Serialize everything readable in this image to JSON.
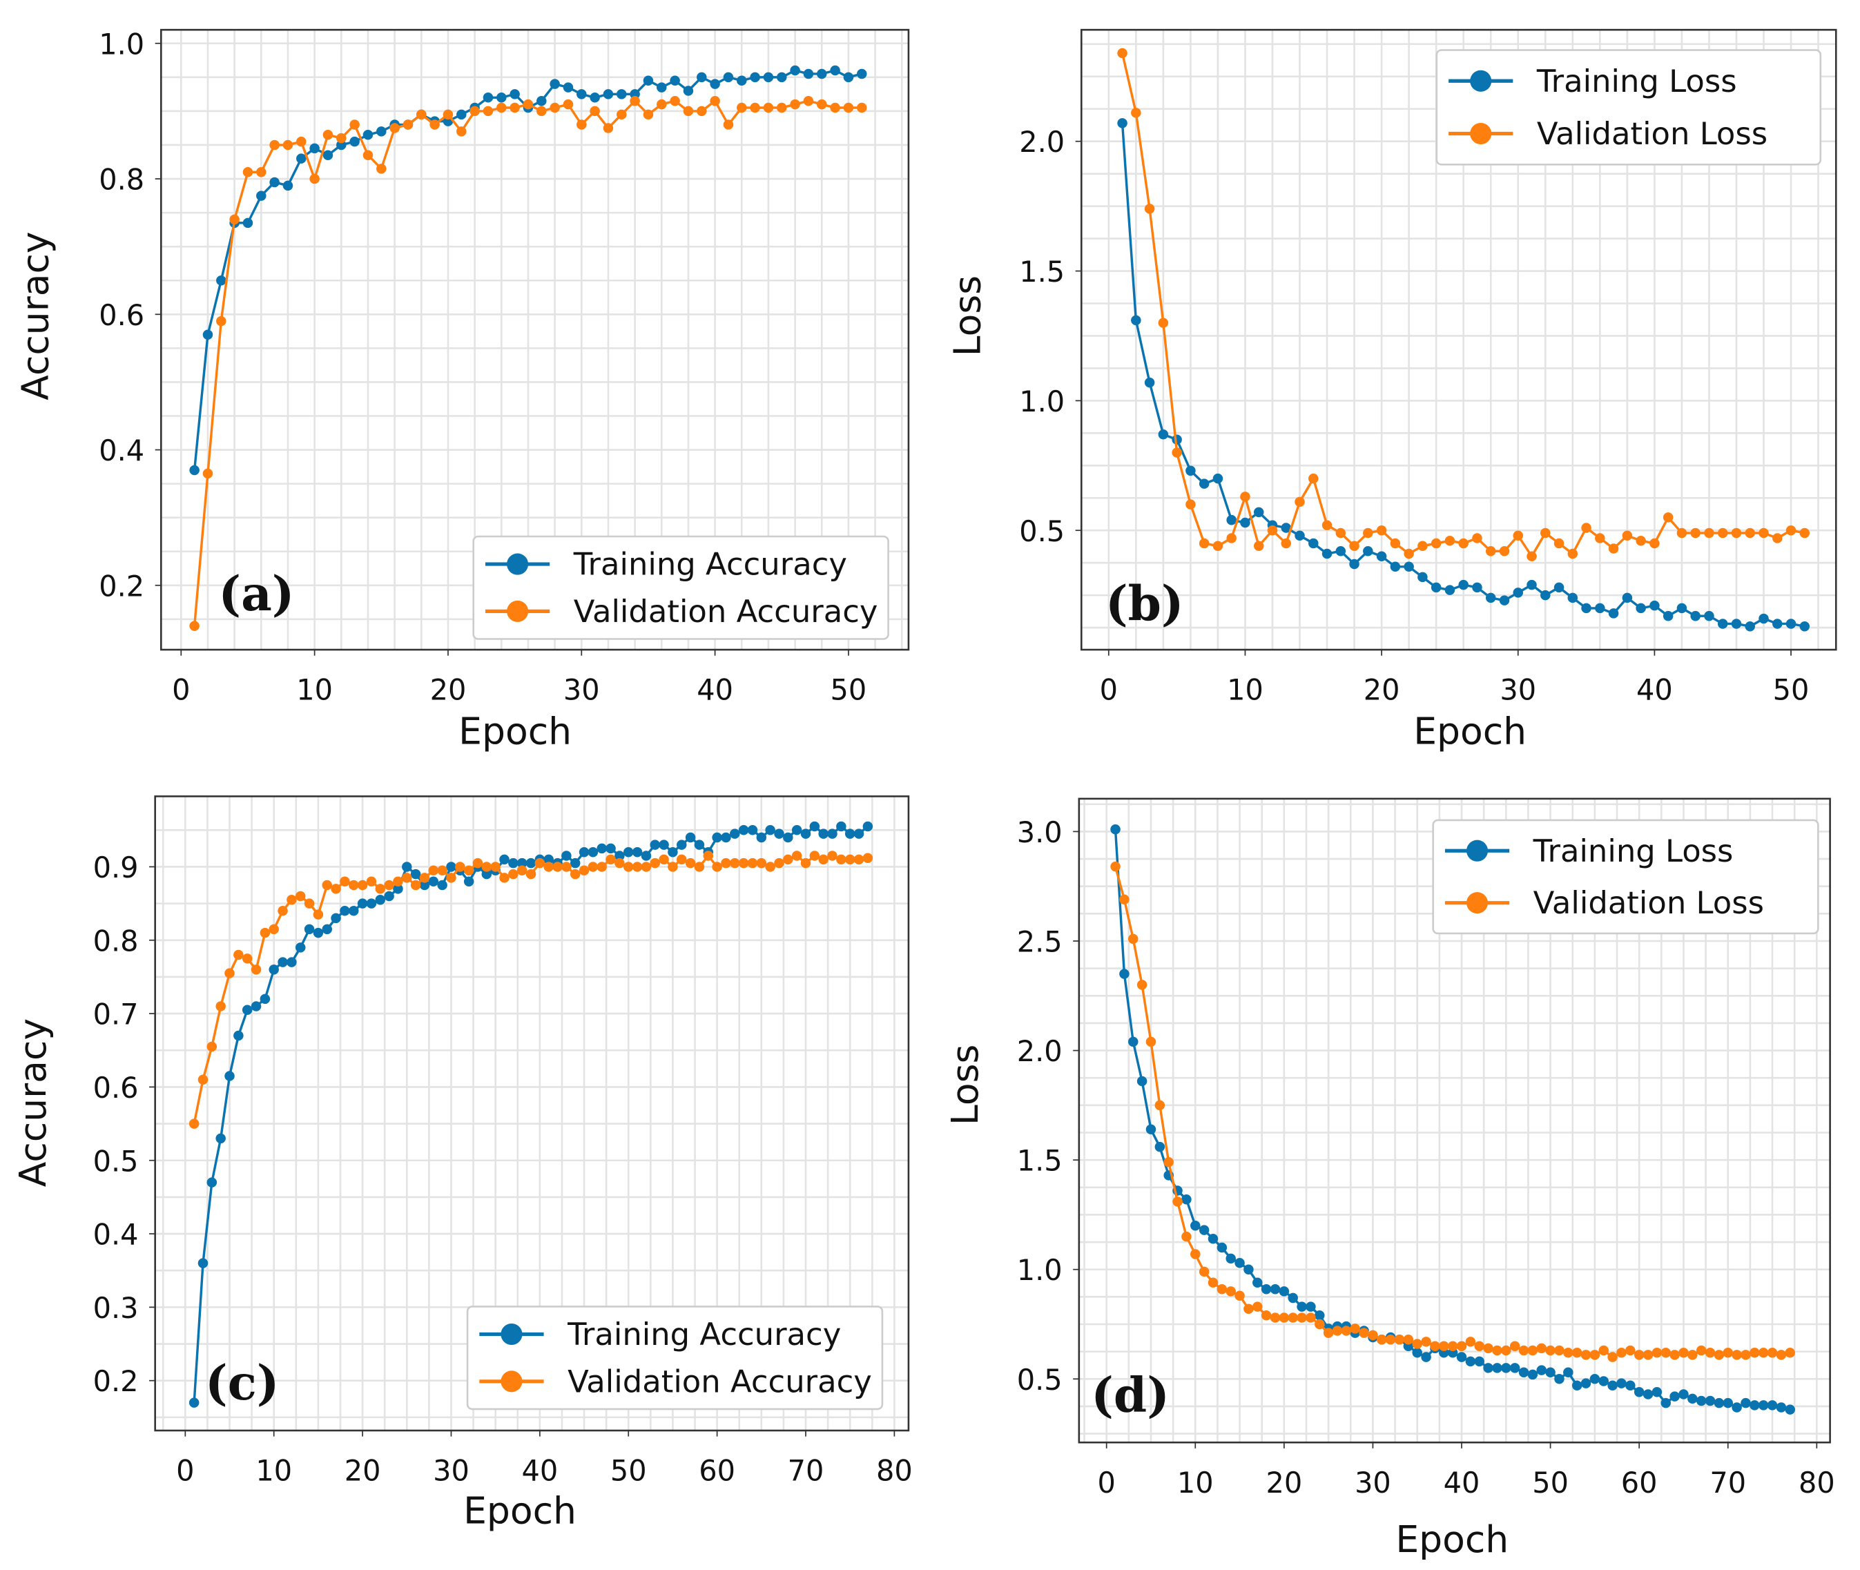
{
  "colors": {
    "training": "#0a74b0",
    "validation": "#ff7f0e"
  },
  "chart_data": [
    {
      "type": "line",
      "panel_label": "(a)",
      "xlabel": "Epoch",
      "ylabel": "Accuracy",
      "xlim": [
        -1.5,
        54.5
      ],
      "ylim": [
        0.105,
        1.02
      ],
      "xticks": [
        0,
        10,
        20,
        30,
        40,
        50
      ],
      "yticks": [
        0.2,
        0.4,
        0.6,
        0.8,
        1.0
      ],
      "ytick_labels": [
        "0.2",
        "0.4",
        "0.6",
        "0.8",
        "1.0"
      ],
      "grid": true,
      "legend_position": "lower-right",
      "series": [
        {
          "name": "Training Accuracy",
          "values": [
            0.37,
            0.57,
            0.65,
            0.735,
            0.735,
            0.775,
            0.795,
            0.79,
            0.83,
            0.845,
            0.835,
            0.85,
            0.855,
            0.865,
            0.87,
            0.88,
            0.88,
            0.895,
            0.885,
            0.885,
            0.895,
            0.905,
            0.92,
            0.92,
            0.925,
            0.905,
            0.915,
            0.94,
            0.935,
            0.925,
            0.92,
            0.925,
            0.925,
            0.925,
            0.945,
            0.935,
            0.945,
            0.93,
            0.95,
            0.94,
            0.95,
            0.945,
            0.95,
            0.95,
            0.95,
            0.96,
            0.955,
            0.955,
            0.96,
            0.95,
            0.955
          ]
        },
        {
          "name": "Validation Accuracy",
          "values": [
            0.14,
            0.365,
            0.59,
            0.74,
            0.81,
            0.81,
            0.85,
            0.85,
            0.855,
            0.8,
            0.865,
            0.86,
            0.88,
            0.835,
            0.815,
            0.875,
            0.88,
            0.895,
            0.88,
            0.895,
            0.87,
            0.9,
            0.9,
            0.905,
            0.905,
            0.91,
            0.9,
            0.905,
            0.91,
            0.88,
            0.9,
            0.875,
            0.895,
            0.915,
            0.895,
            0.91,
            0.915,
            0.9,
            0.9,
            0.915,
            0.88,
            0.905,
            0.905,
            0.905,
            0.905,
            0.91,
            0.915,
            0.91,
            0.905,
            0.905,
            0.905
          ]
        }
      ]
    },
    {
      "type": "line",
      "panel_label": "(b)",
      "xlabel": "Epoch",
      "ylabel": "Loss",
      "xlim": [
        -2,
        53.3
      ],
      "ylim": [
        0.04,
        2.43
      ],
      "xticks": [
        0,
        10,
        20,
        30,
        40,
        50
      ],
      "yticks": [
        0.5,
        1.0,
        1.5,
        2.0
      ],
      "ytick_labels": [
        "0.5",
        "1.0",
        "1.5",
        "2.0"
      ],
      "grid": true,
      "legend_position": "upper-right",
      "series": [
        {
          "name": "Training Loss",
          "values": [
            2.07,
            1.31,
            1.07,
            0.87,
            0.85,
            0.73,
            0.68,
            0.7,
            0.54,
            0.53,
            0.57,
            0.52,
            0.51,
            0.48,
            0.45,
            0.41,
            0.42,
            0.37,
            0.42,
            0.4,
            0.36,
            0.36,
            0.32,
            0.28,
            0.27,
            0.29,
            0.28,
            0.24,
            0.23,
            0.26,
            0.29,
            0.25,
            0.28,
            0.24,
            0.2,
            0.2,
            0.18,
            0.24,
            0.2,
            0.21,
            0.17,
            0.2,
            0.17,
            0.17,
            0.14,
            0.14,
            0.13,
            0.16,
            0.14,
            0.14,
            0.13
          ]
        },
        {
          "name": "Validation Loss",
          "values": [
            2.34,
            2.11,
            1.74,
            1.3,
            0.8,
            0.6,
            0.45,
            0.44,
            0.47,
            0.63,
            0.44,
            0.5,
            0.45,
            0.61,
            0.7,
            0.52,
            0.49,
            0.44,
            0.49,
            0.5,
            0.45,
            0.41,
            0.44,
            0.45,
            0.46,
            0.45,
            0.47,
            0.42,
            0.42,
            0.48,
            0.4,
            0.49,
            0.45,
            0.41,
            0.51,
            0.47,
            0.43,
            0.48,
            0.46,
            0.45,
            0.55,
            0.49,
            0.49,
            0.49,
            0.49,
            0.49,
            0.49,
            0.49,
            0.47,
            0.5,
            0.49
          ]
        }
      ]
    },
    {
      "type": "line",
      "panel_label": "(c)",
      "xlabel": "Epoch",
      "ylabel": "Accuracy",
      "xlim": [
        -3.4,
        81.6
      ],
      "ylim": [
        0.132,
        0.996
      ],
      "xticks": [
        0,
        10,
        20,
        30,
        40,
        50,
        60,
        70,
        80
      ],
      "yticks": [
        0.2,
        0.3,
        0.4,
        0.5,
        0.6,
        0.7,
        0.8,
        0.9
      ],
      "ytick_labels": [
        "0.2",
        "0.3",
        "0.4",
        "0.5",
        "0.6",
        "0.7",
        "0.8",
        "0.9"
      ],
      "grid": true,
      "legend_position": "lower-right",
      "series": [
        {
          "name": "Training Accuracy",
          "values": [
            0.17,
            0.36,
            0.47,
            0.53,
            0.615,
            0.67,
            0.705,
            0.71,
            0.72,
            0.76,
            0.77,
            0.77,
            0.79,
            0.815,
            0.81,
            0.815,
            0.83,
            0.84,
            0.84,
            0.85,
            0.85,
            0.855,
            0.86,
            0.87,
            0.9,
            0.89,
            0.875,
            0.88,
            0.875,
            0.9,
            0.895,
            0.88,
            0.9,
            0.89,
            0.895,
            0.91,
            0.905,
            0.905,
            0.905,
            0.91,
            0.91,
            0.905,
            0.915,
            0.905,
            0.92,
            0.92,
            0.925,
            0.925,
            0.915,
            0.92,
            0.92,
            0.915,
            0.93,
            0.93,
            0.92,
            0.93,
            0.94,
            0.93,
            0.92,
            0.94,
            0.94,
            0.945,
            0.95,
            0.95,
            0.94,
            0.95,
            0.945,
            0.94,
            0.95,
            0.945,
            0.955,
            0.945,
            0.945,
            0.955,
            0.945,
            0.945,
            0.955
          ]
        },
        {
          "name": "Validation Accuracy",
          "values": [
            0.55,
            0.61,
            0.655,
            0.71,
            0.755,
            0.78,
            0.775,
            0.76,
            0.81,
            0.815,
            0.84,
            0.855,
            0.86,
            0.85,
            0.835,
            0.875,
            0.87,
            0.88,
            0.875,
            0.875,
            0.88,
            0.87,
            0.875,
            0.88,
            0.885,
            0.875,
            0.885,
            0.895,
            0.895,
            0.885,
            0.9,
            0.895,
            0.905,
            0.9,
            0.9,
            0.885,
            0.89,
            0.895,
            0.89,
            0.905,
            0.9,
            0.9,
            0.9,
            0.89,
            0.895,
            0.9,
            0.9,
            0.91,
            0.905,
            0.9,
            0.9,
            0.9,
            0.905,
            0.91,
            0.9,
            0.91,
            0.905,
            0.9,
            0.915,
            0.9,
            0.905,
            0.905,
            0.905,
            0.905,
            0.905,
            0.9,
            0.905,
            0.91,
            0.915,
            0.905,
            0.915,
            0.91,
            0.915,
            0.91,
            0.91,
            0.91,
            0.912
          ]
        }
      ]
    },
    {
      "type": "line",
      "panel_label": "(d)",
      "xlabel": "Epoch",
      "ylabel": "Loss",
      "xlim": [
        -3.1,
        81.5
      ],
      "ylim": [
        0.21,
        3.15
      ],
      "xticks": [
        0,
        10,
        20,
        30,
        40,
        50,
        60,
        70,
        80
      ],
      "yticks": [
        0.5,
        1.0,
        1.5,
        2.0,
        2.5,
        3.0
      ],
      "ytick_labels": [
        "0.5",
        "1.0",
        "1.5",
        "2.0",
        "2.5",
        "3.0"
      ],
      "grid": true,
      "legend_position": "upper-right",
      "series": [
        {
          "name": "Training Loss",
          "values": [
            3.01,
            2.35,
            2.04,
            1.86,
            1.64,
            1.56,
            1.43,
            1.36,
            1.32,
            1.2,
            1.18,
            1.14,
            1.1,
            1.05,
            1.03,
            1.0,
            0.94,
            0.91,
            0.91,
            0.9,
            0.87,
            0.83,
            0.83,
            0.79,
            0.73,
            0.74,
            0.74,
            0.71,
            0.72,
            0.69,
            0.68,
            0.69,
            0.68,
            0.65,
            0.62,
            0.6,
            0.64,
            0.62,
            0.62,
            0.6,
            0.58,
            0.58,
            0.55,
            0.55,
            0.55,
            0.55,
            0.53,
            0.52,
            0.54,
            0.53,
            0.5,
            0.53,
            0.47,
            0.48,
            0.5,
            0.49,
            0.47,
            0.48,
            0.47,
            0.44,
            0.43,
            0.44,
            0.39,
            0.42,
            0.43,
            0.41,
            0.4,
            0.4,
            0.39,
            0.39,
            0.37,
            0.39,
            0.38,
            0.38,
            0.38,
            0.37,
            0.36
          ]
        },
        {
          "name": "Validation Loss",
          "values": [
            2.84,
            2.69,
            2.51,
            2.3,
            2.04,
            1.75,
            1.49,
            1.31,
            1.15,
            1.07,
            0.99,
            0.94,
            0.91,
            0.9,
            0.88,
            0.82,
            0.83,
            0.79,
            0.78,
            0.78,
            0.78,
            0.78,
            0.78,
            0.75,
            0.71,
            0.72,
            0.72,
            0.73,
            0.71,
            0.7,
            0.68,
            0.68,
            0.68,
            0.68,
            0.66,
            0.67,
            0.65,
            0.65,
            0.65,
            0.65,
            0.67,
            0.65,
            0.64,
            0.63,
            0.63,
            0.65,
            0.63,
            0.63,
            0.64,
            0.63,
            0.63,
            0.62,
            0.62,
            0.61,
            0.61,
            0.63,
            0.6,
            0.62,
            0.63,
            0.61,
            0.61,
            0.62,
            0.62,
            0.61,
            0.62,
            0.61,
            0.63,
            0.62,
            0.61,
            0.62,
            0.61,
            0.61,
            0.62,
            0.62,
            0.62,
            0.61,
            0.62
          ]
        }
      ]
    }
  ]
}
